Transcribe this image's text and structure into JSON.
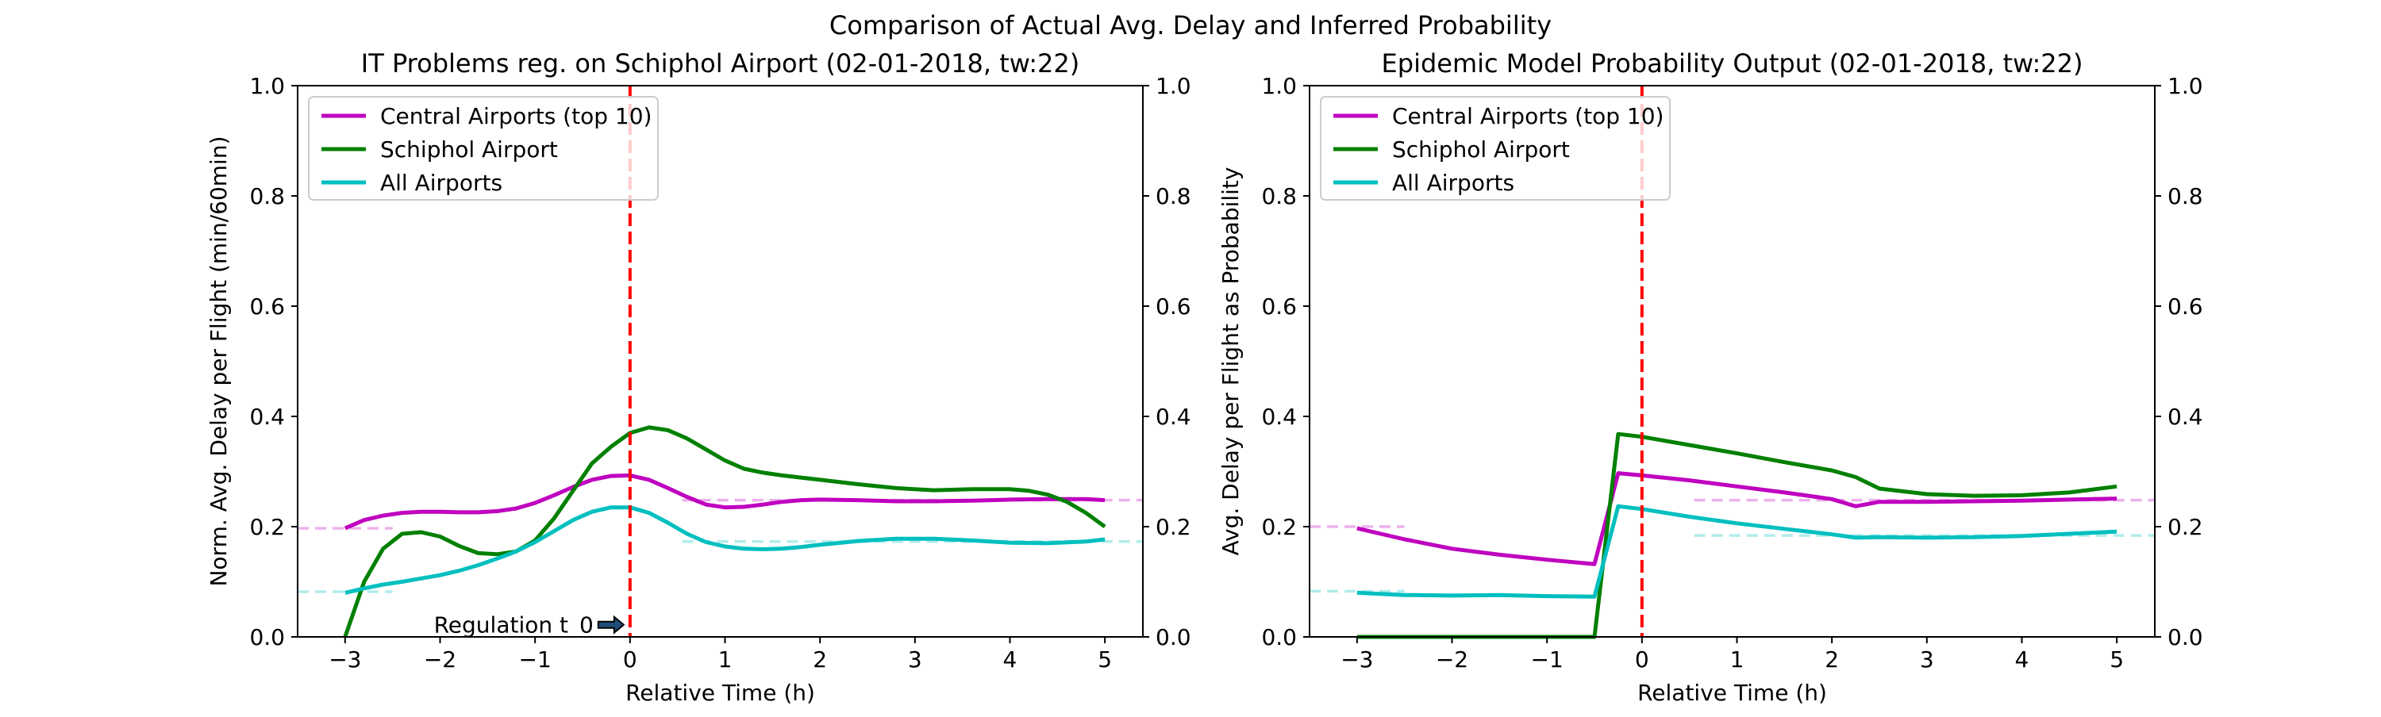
{
  "suptitle": "Comparison of Actual Avg. Delay and Inferred Probability",
  "colors": {
    "central": "#bf00bf",
    "schiphol": "#008000",
    "all": "#00bfbf",
    "vline": "#ff0000"
  },
  "chart_data": [
    {
      "type": "line",
      "title": "IT Problems reg. on Schiphol Airport (02-01-2018, tw:22)",
      "xlabel": "Relative Time (h)",
      "ylabel": "Norm. Avg. Delay per Flight (min/60min)",
      "xlim": [
        -3.5,
        5.4
      ],
      "ylim": [
        0,
        1
      ],
      "xticks": [
        -3,
        -2,
        -1,
        0,
        1,
        2,
        3,
        4,
        5
      ],
      "xtick_labels": [
        "−3",
        "−2",
        "−1",
        "0",
        "1",
        "2",
        "3",
        "4",
        "5"
      ],
      "yticks": [
        0,
        0.2,
        0.4,
        0.6,
        0.8,
        1.0
      ],
      "ytick_labels": [
        "0.0",
        "0.2",
        "0.4",
        "0.6",
        "0.8",
        "1.0"
      ],
      "legend_position": "upper-left",
      "vline_x": 0,
      "annotation": {
        "text": "Regulation t_0",
        "x": -0.05,
        "y": 0.022
      },
      "series": [
        {
          "name": "Central Airports (top 10)",
          "color_key": "central",
          "x": [
            -3.0,
            -2.8,
            -2.6,
            -2.4,
            -2.2,
            -2.0,
            -1.8,
            -1.6,
            -1.4,
            -1.2,
            -1.0,
            -0.8,
            -0.6,
            -0.4,
            -0.2,
            0.0,
            0.2,
            0.4,
            0.6,
            0.8,
            1.0,
            1.2,
            1.4,
            1.6,
            1.8,
            2.0,
            2.4,
            2.8,
            3.2,
            3.6,
            4.0,
            4.4,
            4.8,
            5.0
          ],
          "y": [
            0.197,
            0.212,
            0.22,
            0.225,
            0.227,
            0.227,
            0.226,
            0.226,
            0.228,
            0.233,
            0.243,
            0.257,
            0.272,
            0.285,
            0.292,
            0.293,
            0.285,
            0.27,
            0.254,
            0.24,
            0.235,
            0.236,
            0.24,
            0.245,
            0.248,
            0.249,
            0.248,
            0.246,
            0.246,
            0.247,
            0.249,
            0.25,
            0.25,
            0.248
          ]
        },
        {
          "name": "Schiphol Airport",
          "color_key": "schiphol",
          "x": [
            -3.0,
            -2.8,
            -2.6,
            -2.4,
            -2.2,
            -2.0,
            -1.8,
            -1.6,
            -1.4,
            -1.2,
            -1.0,
            -0.8,
            -0.6,
            -0.4,
            -0.2,
            0.0,
            0.2,
            0.4,
            0.6,
            0.8,
            1.0,
            1.2,
            1.4,
            1.6,
            2.0,
            2.4,
            2.8,
            3.2,
            3.6,
            4.0,
            4.2,
            4.4,
            4.6,
            4.8,
            5.0
          ],
          "y": [
            0.0,
            0.1,
            0.16,
            0.187,
            0.19,
            0.182,
            0.165,
            0.152,
            0.15,
            0.155,
            0.175,
            0.215,
            0.265,
            0.315,
            0.345,
            0.37,
            0.38,
            0.375,
            0.36,
            0.34,
            0.32,
            0.305,
            0.298,
            0.293,
            0.285,
            0.277,
            0.27,
            0.266,
            0.268,
            0.268,
            0.265,
            0.258,
            0.245,
            0.225,
            0.2
          ]
        },
        {
          "name": "All Airports",
          "color_key": "all",
          "x": [
            -3.0,
            -2.8,
            -2.6,
            -2.4,
            -2.2,
            -2.0,
            -1.8,
            -1.6,
            -1.4,
            -1.2,
            -1.0,
            -0.8,
            -0.6,
            -0.4,
            -0.2,
            0.0,
            0.2,
            0.4,
            0.6,
            0.8,
            1.0,
            1.2,
            1.4,
            1.6,
            1.8,
            2.0,
            2.4,
            2.8,
            3.2,
            3.6,
            4.0,
            4.4,
            4.8,
            5.0
          ],
          "y": [
            0.08,
            0.088,
            0.095,
            0.1,
            0.106,
            0.112,
            0.12,
            0.13,
            0.142,
            0.155,
            0.172,
            0.192,
            0.212,
            0.227,
            0.235,
            0.235,
            0.225,
            0.207,
            0.187,
            0.172,
            0.164,
            0.16,
            0.159,
            0.16,
            0.163,
            0.167,
            0.174,
            0.178,
            0.178,
            0.175,
            0.171,
            0.17,
            0.173,
            0.177
          ]
        }
      ],
      "baselines": [
        {
          "color_key": "central",
          "y": 0.197,
          "x": [
            -3.5,
            -2.5
          ]
        },
        {
          "color_key": "all",
          "y": 0.082,
          "x": [
            -3.5,
            -2.5
          ]
        },
        {
          "color_key": "central",
          "y": 0.248,
          "x": [
            0.55,
            5.4
          ]
        },
        {
          "color_key": "all",
          "y": 0.173,
          "x": [
            0.55,
            5.4
          ]
        }
      ]
    },
    {
      "type": "line",
      "title": "Epidemic Model Probability Output (02-01-2018, tw:22)",
      "xlabel": "Relative Time (h)",
      "ylabel": "Avg. Delay per Flight as Probability",
      "xlim": [
        -3.5,
        5.4
      ],
      "ylim": [
        0,
        1
      ],
      "xticks": [
        -3,
        -2,
        -1,
        0,
        1,
        2,
        3,
        4,
        5
      ],
      "xtick_labels": [
        "−3",
        "−2",
        "−1",
        "0",
        "1",
        "2",
        "3",
        "4",
        "5"
      ],
      "yticks": [
        0,
        0.2,
        0.4,
        0.6,
        0.8,
        1.0
      ],
      "ytick_labels": [
        "0.0",
        "0.2",
        "0.4",
        "0.6",
        "0.8",
        "1.0"
      ],
      "legend_position": "upper-left",
      "vline_x": 0,
      "series": [
        {
          "name": "Central Airports (top 10)",
          "color_key": "central",
          "x": [
            -3.0,
            -2.5,
            -2.0,
            -1.5,
            -1.0,
            -0.5,
            -0.25,
            0.0,
            0.5,
            1.0,
            1.5,
            2.0,
            2.25,
            2.5,
            3.0,
            3.5,
            4.0,
            4.5,
            5.0
          ],
          "y": [
            0.197,
            0.177,
            0.16,
            0.149,
            0.14,
            0.132,
            0.297,
            0.293,
            0.284,
            0.273,
            0.262,
            0.25,
            0.237,
            0.245,
            0.245,
            0.246,
            0.247,
            0.249,
            0.251
          ]
        },
        {
          "name": "Schiphol Airport",
          "color_key": "schiphol",
          "x": [
            -3.0,
            -2.0,
            -1.0,
            -0.5,
            -0.25,
            0.0,
            0.5,
            1.0,
            1.5,
            2.0,
            2.25,
            2.5,
            3.0,
            3.5,
            4.0,
            4.5,
            5.0
          ],
          "y": [
            0.0,
            0.0,
            0.0,
            0.0,
            0.368,
            0.363,
            0.348,
            0.333,
            0.317,
            0.302,
            0.29,
            0.269,
            0.259,
            0.256,
            0.257,
            0.262,
            0.273
          ]
        },
        {
          "name": "All Airports",
          "color_key": "all",
          "x": [
            -3.0,
            -2.5,
            -2.0,
            -1.5,
            -1.0,
            -0.5,
            -0.25,
            0.0,
            0.5,
            1.0,
            1.5,
            2.0,
            2.25,
            2.5,
            3.0,
            3.5,
            4.0,
            4.5,
            5.0
          ],
          "y": [
            0.08,
            0.076,
            0.075,
            0.076,
            0.074,
            0.073,
            0.237,
            0.232,
            0.218,
            0.206,
            0.196,
            0.186,
            0.18,
            0.181,
            0.18,
            0.181,
            0.183,
            0.187,
            0.191
          ]
        }
      ],
      "baselines": [
        {
          "color_key": "central",
          "y": 0.2,
          "x": [
            -3.5,
            -2.5
          ]
        },
        {
          "color_key": "all",
          "y": 0.083,
          "x": [
            -3.5,
            -2.5
          ]
        },
        {
          "color_key": "central",
          "y": 0.248,
          "x": [
            0.55,
            5.4
          ]
        },
        {
          "color_key": "all",
          "y": 0.184,
          "x": [
            0.55,
            5.4
          ]
        }
      ]
    }
  ]
}
